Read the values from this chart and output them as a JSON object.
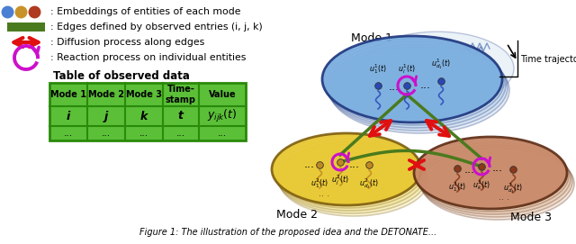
{
  "title": "Figure 1: The illustration of the proposed idea and the DETONATE...",
  "legend_dots": [
    "#4a7fd4",
    "#c8922a",
    "#b03a20"
  ],
  "legend_line_color": "#4a7a1e",
  "legend_arrow_color": "#e01010",
  "legend_reaction_color": "#cc10cc",
  "legend_texts": [
    ": Embeddings of entities of each mode",
    ": Edges defined by observed entries (i, j, k)",
    ": Diffusion process along edges",
    ": Reaction process on individual entities"
  ],
  "table_title": "Table of observed data",
  "table_headers": [
    "Mode 1",
    "Mode 2",
    "Mode 3",
    "Time-\nstamp",
    "Value"
  ],
  "table_row1_math": [
    "$\\boldsymbol{i}$",
    "$\\boldsymbol{j}$",
    "$\\boldsymbol{k}$",
    "$\\boldsymbol{t}$",
    "$y_{ijk}(t)$"
  ],
  "table_row2": [
    "...",
    "...",
    "...",
    "...",
    "..."
  ],
  "table_green": "#5bbf38",
  "table_border": "#2a8a0a",
  "table_white_border": "#ffffff",
  "mode1_color": "#7aaee0",
  "mode1_shadow": "#b0cce8",
  "mode1_edge": "#203880",
  "mode2_color": "#e8c830",
  "mode2_shadow": "#f0de80",
  "mode2_edge": "#806010",
  "mode3_color": "#c88868",
  "mode3_shadow": "#deb898",
  "mode3_edge": "#603018",
  "node_blue": "#2848b8",
  "node_gold": "#c08820",
  "node_brown": "#8a3818",
  "green": "#4a7a1e",
  "red": "#e01010",
  "magenta": "#cc10cc",
  "black": "#000000",
  "white": "#ffffff",
  "caption": "Figure 1: The illustration of the proposed idea and the DETONATE..."
}
